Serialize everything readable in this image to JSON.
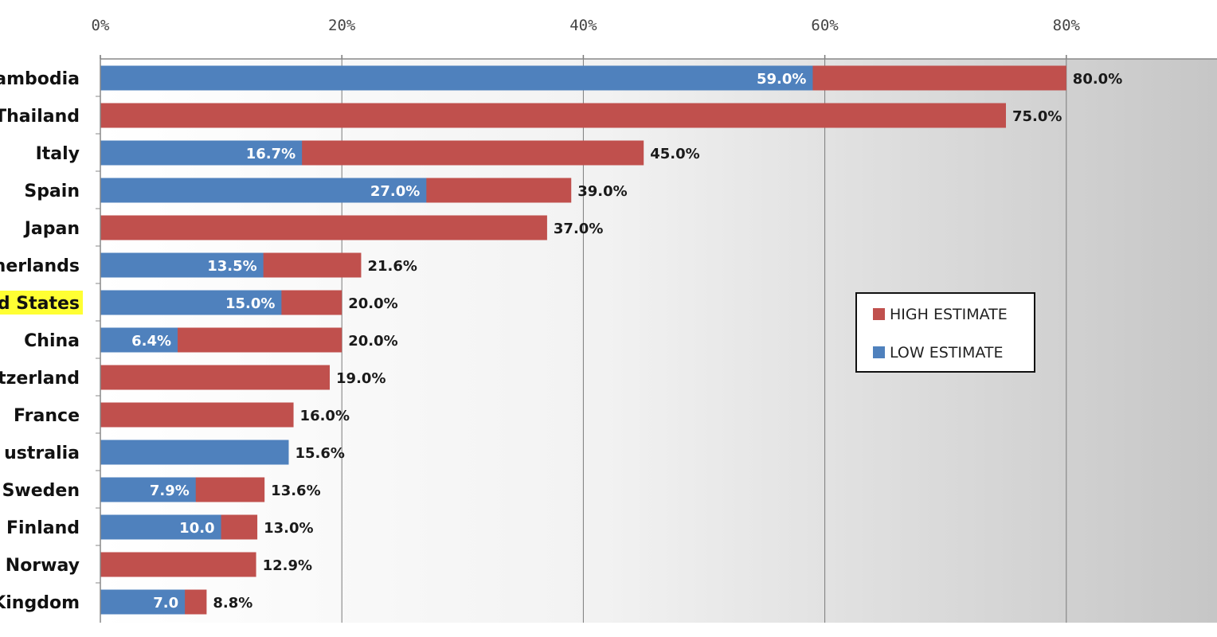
{
  "chart_data": {
    "type": "bar",
    "orientation": "horizontal",
    "stacking": "overlay",
    "categories": [
      "ambodia",
      "Thailand",
      "Italy",
      "Spain",
      "Japan",
      "herlands",
      "d States",
      "China",
      "tzerland",
      "France",
      "ustralia",
      "Sweden",
      "Finland",
      "Norway",
      "Kingdom"
    ],
    "highlighted_category": "d States",
    "highlight_color": "#ffff33",
    "xlim": [
      0,
      100
    ],
    "x_ticks": [
      0,
      20,
      40,
      60,
      80
    ],
    "x_tick_labels": [
      "0%",
      "20%",
      "40%",
      "60%",
      "80%"
    ],
    "grid": true,
    "series": [
      {
        "name": "HIGH ESTIMATE",
        "color": "#c0504d",
        "values": [
          80.0,
          null,
          45.0,
          39.0,
          37.0,
          21.6,
          20.0,
          20.0,
          19.0,
          16.0,
          null,
          13.6,
          13.0,
          12.9,
          8.8
        ],
        "labels": [
          "80.0%",
          "",
          "45.0%",
          "39.0%",
          "37.0%",
          "21.6%",
          "20.0%",
          "20.0%",
          "19.0%",
          "16.0%",
          "",
          "13.6%",
          "13.0%",
          "12.9%",
          "8.8%"
        ]
      },
      {
        "name": "LOW ESTIMATE",
        "color": "#4f81bd",
        "values": [
          59.0,
          null,
          16.7,
          27.0,
          null,
          13.5,
          15.0,
          6.4,
          null,
          null,
          15.6,
          7.9,
          10.0,
          null,
          7.0
        ],
        "labels": [
          "59.0%",
          "",
          "16.7%",
          "27.0%",
          "",
          "13.5%",
          "15.0%",
          "6.4%",
          "",
          "",
          "15.6%",
          "7.9%",
          "10.0",
          "",
          "7.0"
        ]
      },
      {
        "name": "",
        "color": "#c0504d",
        "values": [
          null,
          75.0,
          null,
          null,
          null,
          null,
          null,
          null,
          null,
          null,
          null,
          null,
          null,
          null,
          null
        ],
        "labels": [
          "",
          "75.0%",
          "",
          "",
          "",
          "",
          "",
          "",
          "",
          "",
          "",
          "",
          "",
          "",
          ""
        ]
      }
    ],
    "legend": {
      "position": "right",
      "entries": [
        {
          "label": "HIGH ESTIMATE",
          "color": "#c0504d"
        },
        {
          "label": "LOW ESTIMATE",
          "color": "#4f81bd"
        }
      ]
    },
    "background_gradient": [
      "#ffffff",
      "#c6c6c6"
    ]
  }
}
